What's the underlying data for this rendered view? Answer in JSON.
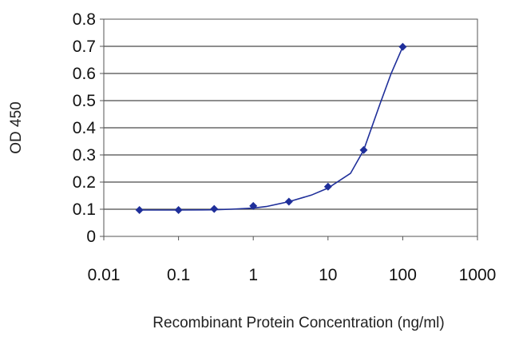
{
  "chart_data": {
    "type": "line",
    "title": "",
    "xlabel": "Recombinant Protein Concentration (ng/ml)",
    "ylabel": "OD 450",
    "x_scale": "log",
    "xlim": [
      0.01,
      1000
    ],
    "ylim": [
      0,
      0.8
    ],
    "x_ticks": [
      0.01,
      0.1,
      1,
      10,
      100,
      1000
    ],
    "x_tick_labels": [
      "0.01",
      "0.1",
      "1",
      "10",
      "100",
      "1000"
    ],
    "y_ticks": [
      0,
      0.1,
      0.2,
      0.3,
      0.4,
      0.5,
      0.6,
      0.7,
      0.8
    ],
    "y_tick_labels": [
      "0",
      "0.1",
      "0.2",
      "0.3",
      "0.4",
      "0.5",
      "0.6",
      "0.7",
      "0.8"
    ],
    "grid": "horizontal",
    "legend": "none",
    "series_color": "#1f2f9a",
    "marker": "diamond",
    "series": [
      {
        "x": [
          0.03,
          0.1,
          0.3,
          1,
          3,
          10,
          30,
          100
        ],
        "y": [
          0.097,
          0.097,
          0.101,
          0.112,
          0.128,
          0.183,
          0.318,
          0.698
        ]
      }
    ],
    "curve": {
      "x": [
        0.03,
        0.1,
        0.3,
        0.5,
        1,
        1.5,
        3,
        6,
        10,
        20,
        30,
        50,
        70,
        100
      ],
      "y": [
        0.097,
        0.097,
        0.098,
        0.1,
        0.104,
        0.11,
        0.128,
        0.152,
        0.178,
        0.232,
        0.318,
        0.49,
        0.6,
        0.698
      ]
    }
  }
}
